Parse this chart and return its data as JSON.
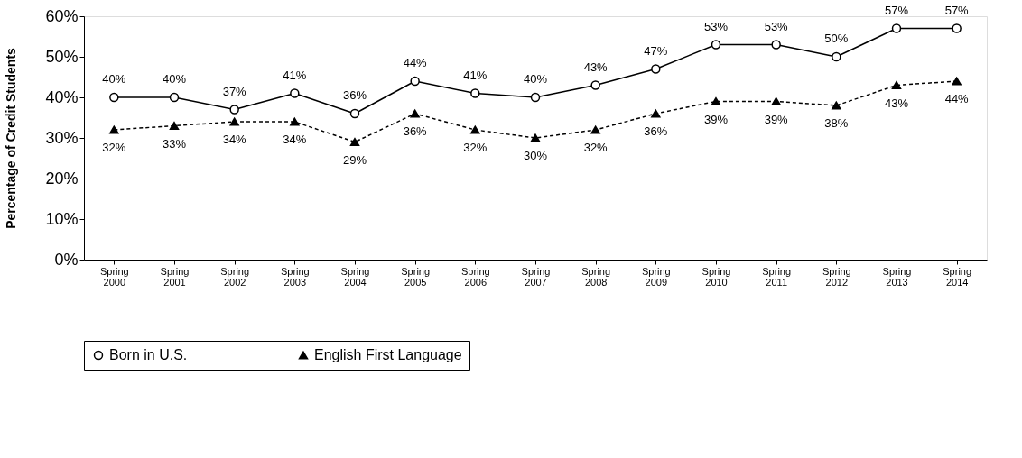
{
  "chart_data": {
    "type": "line",
    "ylabel": "Percentage of Credit Students",
    "categories": [
      "Spring 2000",
      "Spring 2001",
      "Spring 2002",
      "Spring 2003",
      "Spring 2004",
      "Spring 2005",
      "Spring 2006",
      "Spring 2007",
      "Spring 2008",
      "Spring 2009",
      "Spring 2010",
      "Spring 2011",
      "Spring 2012",
      "Spring 2013",
      "Spring 2014"
    ],
    "series": [
      {
        "name": "Born in U.S.",
        "color": "#000000",
        "marker": "circle",
        "line_style": "solid",
        "values": [
          40,
          40,
          37,
          41,
          36,
          44,
          41,
          40,
          43,
          47,
          53,
          53,
          50,
          57,
          57
        ],
        "value_labels": [
          "40%",
          "40%",
          "37%",
          "41%",
          "36%",
          "44%",
          "41%",
          "40%",
          "43%",
          "47%",
          "53%",
          "53%",
          "50%",
          "57%",
          "57%"
        ]
      },
      {
        "name": "English First Language",
        "color": "#000000",
        "marker": "triangle",
        "line_style": "dashed",
        "values": [
          32,
          33,
          34,
          34,
          29,
          36,
          32,
          30,
          32,
          36,
          39,
          39,
          38,
          43,
          44
        ],
        "value_labels": [
          "32%",
          "33%",
          "34%",
          "34%",
          "29%",
          "36%",
          "32%",
          "30%",
          "32%",
          "36%",
          "39%",
          "39%",
          "38%",
          "43%",
          "44%"
        ]
      }
    ],
    "ylim": [
      0,
      60
    ],
    "yticks": [
      {
        "value": 0,
        "label": "0%"
      },
      {
        "value": 10,
        "label": "10%"
      },
      {
        "value": 20,
        "label": "20%"
      },
      {
        "value": 30,
        "label": "30%"
      },
      {
        "value": 40,
        "label": "40%"
      },
      {
        "value": 50,
        "label": "50%"
      },
      {
        "value": 60,
        "label": "60%"
      }
    ],
    "grid": false,
    "legend": "bottom"
  }
}
